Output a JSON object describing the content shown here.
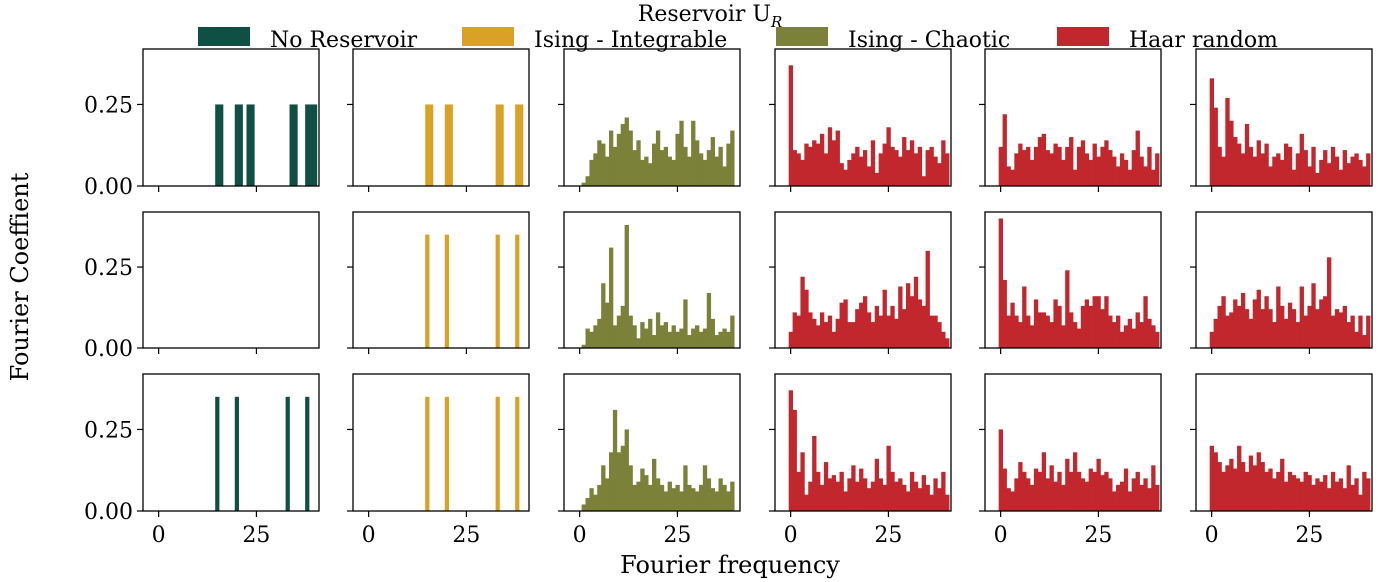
{
  "chart_data": {
    "type": "bar",
    "title": "Reservoir U",
    "title_subscript": "R",
    "xlabel": "Fourier frequency",
    "ylabel": "Fourier Coeffient",
    "xlim": [
      -4,
      41
    ],
    "ylim": [
      0,
      0.42
    ],
    "xticks": [
      0,
      25
    ],
    "xtick_labels": [
      "0",
      "25"
    ],
    "yticks": [
      0.0,
      0.25
    ],
    "ytick_labels": [
      "0.00",
      "0.25"
    ],
    "legend_position": "top",
    "colors": {
      "No Reservoir": "#0f4f44",
      "Ising - Integrable": "#d9a227",
      "Ising - Chaotic": "#7b8139",
      "Haar random": "#c1272d"
    },
    "series": [
      {
        "name": "No Reservoir"
      },
      {
        "name": "Ising - Integrable"
      },
      {
        "name": "Ising - Chaotic"
      },
      {
        "name": "Haar random"
      }
    ],
    "panels": [
      [
        {
          "series": "No Reservoir",
          "x": [
            15,
            16,
            20,
            21,
            23,
            24,
            34,
            35,
            38,
            39,
            40
          ],
          "values": [
            0.25,
            0.25,
            0.25,
            0.25,
            0.25,
            0.25,
            0.25,
            0.25,
            0.25,
            0.25,
            0.25
          ]
        },
        {
          "series": "Ising - Integrable",
          "x": [
            15,
            16,
            20,
            21,
            33,
            34,
            38,
            39
          ],
          "values": [
            0.25,
            0.25,
            0.25,
            0.25,
            0.25,
            0.25,
            0.25,
            0.25
          ]
        },
        {
          "series": "Ising - Chaotic",
          "values": [
            0.0,
            0.01,
            0.03,
            0.08,
            0.1,
            0.14,
            0.13,
            0.09,
            0.17,
            0.12,
            0.16,
            0.19,
            0.21,
            0.17,
            0.11,
            0.14,
            0.08,
            0.09,
            0.07,
            0.13,
            0.17,
            0.11,
            0.12,
            0.09,
            0.08,
            0.16,
            0.2,
            0.12,
            0.09,
            0.2,
            0.14,
            0.1,
            0.08,
            0.11,
            0.15,
            0.09,
            0.12,
            0.06,
            0.13,
            0.17
          ]
        },
        {
          "series": "Haar random",
          "values": [
            0.37,
            0.11,
            0.1,
            0.08,
            0.13,
            0.12,
            0.14,
            0.13,
            0.16,
            0.1,
            0.18,
            0.14,
            0.17,
            0.07,
            0.05,
            0.08,
            0.1,
            0.12,
            0.09,
            0.11,
            0.06,
            0.14,
            0.04,
            0.1,
            0.13,
            0.18,
            0.12,
            0.11,
            0.09,
            0.15,
            0.11,
            0.14,
            0.1,
            0.12,
            0.03,
            0.11,
            0.12,
            0.09,
            0.07,
            0.14,
            0.1
          ]
        },
        {
          "series": "Haar random",
          "values": [
            0.12,
            0.22,
            0.06,
            0.05,
            0.1,
            0.13,
            0.11,
            0.12,
            0.08,
            0.12,
            0.15,
            0.16,
            0.11,
            0.1,
            0.13,
            0.12,
            0.08,
            0.12,
            0.15,
            0.05,
            0.12,
            0.14,
            0.1,
            0.08,
            0.13,
            0.09,
            0.12,
            0.14,
            0.11,
            0.09,
            0.06,
            0.1,
            0.08,
            0.05,
            0.11,
            0.17,
            0.09,
            0.06,
            0.12,
            0.05,
            0.1
          ]
        },
        {
          "series": "Haar random",
          "values": [
            0.33,
            0.24,
            0.12,
            0.09,
            0.27,
            0.2,
            0.15,
            0.13,
            0.1,
            0.19,
            0.12,
            0.09,
            0.14,
            0.1,
            0.13,
            0.06,
            0.09,
            0.1,
            0.08,
            0.13,
            0.12,
            0.05,
            0.1,
            0.16,
            0.11,
            0.06,
            0.12,
            0.04,
            0.08,
            0.11,
            0.07,
            0.12,
            0.09,
            0.05,
            0.11,
            0.07,
            0.09,
            0.1,
            0.08,
            0.06,
            0.1
          ]
        }
      ],
      [
        {
          "series": "No Reservoir",
          "x": [],
          "values": []
        },
        {
          "series": "Ising - Integrable",
          "x": [
            15,
            20,
            33,
            38
          ],
          "values": [
            0.35,
            0.35,
            0.35,
            0.35
          ]
        },
        {
          "series": "Ising - Chaotic",
          "values": [
            0.0,
            0.01,
            0.06,
            0.05,
            0.07,
            0.09,
            0.2,
            0.14,
            0.31,
            0.07,
            0.1,
            0.13,
            0.38,
            0.1,
            0.07,
            0.03,
            0.08,
            0.06,
            0.09,
            0.04,
            0.11,
            0.07,
            0.08,
            0.05,
            0.07,
            0.05,
            0.06,
            0.15,
            0.04,
            0.06,
            0.07,
            0.05,
            0.06,
            0.17,
            0.09,
            0.04,
            0.05,
            0.06,
            0.05,
            0.1
          ]
        },
        {
          "series": "Haar random",
          "values": [
            0.05,
            0.11,
            0.1,
            0.22,
            0.18,
            0.11,
            0.09,
            0.07,
            0.11,
            0.08,
            0.1,
            0.05,
            0.09,
            0.14,
            0.15,
            0.08,
            0.08,
            0.12,
            0.14,
            0.16,
            0.11,
            0.08,
            0.13,
            0.1,
            0.18,
            0.1,
            0.13,
            0.09,
            0.19,
            0.12,
            0.2,
            0.16,
            0.22,
            0.15,
            0.13,
            0.3,
            0.1,
            0.1,
            0.08,
            0.05,
            0.03
          ]
        },
        {
          "series": "Haar random",
          "values": [
            0.4,
            0.21,
            0.1,
            0.14,
            0.1,
            0.08,
            0.19,
            0.1,
            0.07,
            0.15,
            0.11,
            0.11,
            0.1,
            0.08,
            0.15,
            0.13,
            0.07,
            0.24,
            0.11,
            0.08,
            0.06,
            0.13,
            0.15,
            0.13,
            0.16,
            0.16,
            0.12,
            0.16,
            0.1,
            0.08,
            0.1,
            0.05,
            0.07,
            0.09,
            0.06,
            0.11,
            0.08,
            0.16,
            0.09,
            0.07,
            0.05
          ]
        },
        {
          "series": "Haar random",
          "values": [
            0.05,
            0.09,
            0.13,
            0.16,
            0.1,
            0.11,
            0.15,
            0.13,
            0.17,
            0.12,
            0.09,
            0.15,
            0.18,
            0.12,
            0.16,
            0.12,
            0.08,
            0.19,
            0.13,
            0.09,
            0.14,
            0.12,
            0.08,
            0.19,
            0.1,
            0.13,
            0.2,
            0.12,
            0.15,
            0.16,
            0.28,
            0.1,
            0.12,
            0.11,
            0.13,
            0.08,
            0.1,
            0.05,
            0.1,
            0.04,
            0.1
          ]
        }
      ],
      [
        {
          "series": "No Reservoir",
          "x": [
            15,
            20,
            33,
            38
          ],
          "values": [
            0.35,
            0.35,
            0.35,
            0.35
          ]
        },
        {
          "series": "Ising - Integrable",
          "x": [
            15,
            20,
            33,
            38
          ],
          "values": [
            0.35,
            0.35,
            0.35,
            0.35
          ]
        },
        {
          "series": "Ising - Chaotic",
          "values": [
            0.0,
            0.02,
            0.04,
            0.07,
            0.05,
            0.08,
            0.14,
            0.1,
            0.18,
            0.31,
            0.18,
            0.2,
            0.25,
            0.14,
            0.08,
            0.09,
            0.13,
            0.11,
            0.08,
            0.16,
            0.1,
            0.08,
            0.06,
            0.09,
            0.07,
            0.08,
            0.06,
            0.14,
            0.08,
            0.07,
            0.06,
            0.08,
            0.14,
            0.1,
            0.07,
            0.06,
            0.1,
            0.08,
            0.06,
            0.09
          ]
        },
        {
          "series": "Haar random",
          "values": [
            0.37,
            0.31,
            0.12,
            0.18,
            0.05,
            0.09,
            0.23,
            0.12,
            0.08,
            0.15,
            0.1,
            0.11,
            0.09,
            0.12,
            0.06,
            0.1,
            0.14,
            0.09,
            0.13,
            0.1,
            0.07,
            0.09,
            0.16,
            0.1,
            0.08,
            0.2,
            0.12,
            0.09,
            0.1,
            0.08,
            0.06,
            0.12,
            0.09,
            0.07,
            0.11,
            0.08,
            0.05,
            0.1,
            0.07,
            0.12,
            0.05
          ]
        },
        {
          "series": "Haar random",
          "values": [
            0.25,
            0.13,
            0.07,
            0.06,
            0.1,
            0.15,
            0.12,
            0.1,
            0.08,
            0.13,
            0.12,
            0.18,
            0.1,
            0.14,
            0.09,
            0.12,
            0.08,
            0.16,
            0.12,
            0.18,
            0.12,
            0.1,
            0.09,
            0.13,
            0.12,
            0.16,
            0.11,
            0.12,
            0.1,
            0.06,
            0.08,
            0.09,
            0.13,
            0.06,
            0.1,
            0.12,
            0.08,
            0.1,
            0.07,
            0.14,
            0.08
          ]
        },
        {
          "series": "Haar random",
          "values": [
            0.2,
            0.18,
            0.15,
            0.12,
            0.14,
            0.16,
            0.13,
            0.2,
            0.15,
            0.12,
            0.17,
            0.14,
            0.18,
            0.15,
            0.12,
            0.13,
            0.1,
            0.12,
            0.16,
            0.09,
            0.12,
            0.11,
            0.1,
            0.09,
            0.12,
            0.11,
            0.08,
            0.1,
            0.09,
            0.11,
            0.07,
            0.12,
            0.09,
            0.1,
            0.07,
            0.14,
            0.08,
            0.1,
            0.05,
            0.12,
            0.1
          ]
        }
      ]
    ]
  }
}
